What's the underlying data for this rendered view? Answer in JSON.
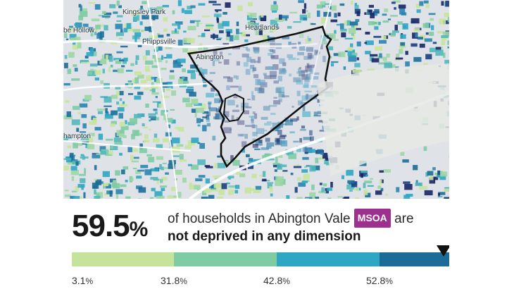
{
  "map": {
    "places": [
      {
        "name": "Kingsley Park"
      },
      {
        "name": "Phippsville"
      },
      {
        "name": "Headlands"
      },
      {
        "name": "Abington"
      },
      {
        "name": "be Hollow"
      },
      {
        "name": "hampton"
      }
    ],
    "colors": {
      "background": "#dfe3e7",
      "boundary": "#111111",
      "selected_area": "#d8d8e4"
    }
  },
  "stat": {
    "value": "59.5",
    "unit": "%",
    "text_before": "of households in Abington Vale",
    "badge": "MSOA",
    "text_after": "are",
    "text_bold": "not deprived in any dimension"
  },
  "legend": {
    "colors": [
      "#c6e39b",
      "#7fcba4",
      "#2fa6c4",
      "#1c6c98"
    ],
    "ticks": [
      {
        "value": "3.1",
        "unit": "%"
      },
      {
        "value": "31.8",
        "unit": "%"
      },
      {
        "value": "42.8",
        "unit": "%"
      },
      {
        "value": "52.8",
        "unit": "%"
      }
    ],
    "marker_value": 59.5
  }
}
